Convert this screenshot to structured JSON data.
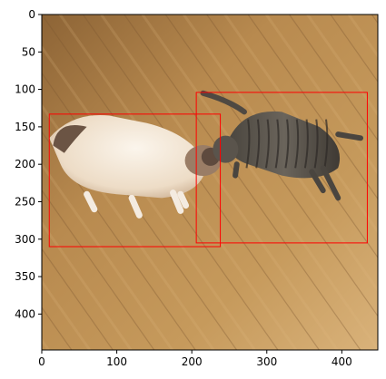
{
  "plot": {
    "image_extent": {
      "x": [
        0,
        448
      ],
      "y": [
        448,
        0
      ]
    },
    "x_ticks": [
      0,
      100,
      200,
      300,
      400
    ],
    "y_ticks": [
      0,
      50,
      100,
      150,
      200,
      250,
      300,
      350,
      400
    ],
    "box_color": "#ff0000",
    "axis_color": "#000000"
  },
  "scene": {
    "description": "Two cats lying on a wooden floor",
    "floor_color": "#b98a4e",
    "cat_white_color": "#f1e6d8",
    "cat_tabby_color": "#5e5850"
  },
  "boxes": [
    {
      "label": "",
      "x_min": 10,
      "y_min": 133,
      "x_max": 238,
      "y_max": 310
    },
    {
      "label": "",
      "x_min": 206,
      "y_min": 104,
      "x_max": 434,
      "y_max": 305
    }
  ]
}
